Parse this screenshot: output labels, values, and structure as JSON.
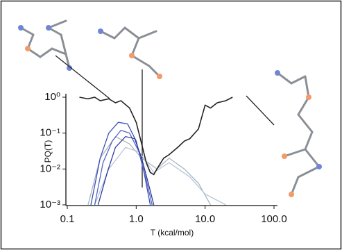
{
  "chart_data": {
    "type": "line",
    "x_label": "T (kcal/mol)",
    "y_label": "PQ(T)",
    "log_x": true,
    "log_y": true,
    "xlim": [
      0.1,
      100
    ],
    "ylim": [
      0.001,
      1
    ],
    "xticks": [
      {
        "value": 0.1,
        "label": "0.1"
      },
      {
        "value": 1,
        "label": "1.0"
      },
      {
        "value": 10,
        "label": "10.0"
      },
      {
        "value": 100,
        "label": "100.0"
      }
    ],
    "yticks": [
      {
        "value": 0.001,
        "label": "10⁻³"
      },
      {
        "value": 0.01,
        "label": "10⁻²"
      },
      {
        "value": 0.1,
        "label": "10⁻¹"
      },
      {
        "value": 1,
        "label": "10⁰"
      }
    ],
    "series": [
      {
        "color": "#a9b4bf",
        "x": [
          0.2,
          0.3,
          0.5,
          0.8,
          1.2,
          2,
          3,
          5,
          8,
          12
        ],
        "values": [
          0.001,
          0.02,
          0.08,
          0.05,
          0.02,
          0.01,
          0.02,
          0.01,
          0.004,
          0.001
        ]
      },
      {
        "color": "#b7c6d8",
        "x": [
          0.25,
          0.4,
          0.7,
          1.1,
          1.8,
          3,
          6,
          10,
          20
        ],
        "values": [
          0.001,
          0.01,
          0.04,
          0.03,
          0.008,
          0.015,
          0.006,
          0.002,
          0.001
        ]
      },
      {
        "color": "#3b4fb2",
        "x": [
          0.22,
          0.3,
          0.4,
          0.55,
          0.75,
          1.0,
          1.3,
          1.6
        ],
        "values": [
          0.001,
          0.02,
          0.1,
          0.2,
          0.18,
          0.06,
          0.008,
          0.001
        ]
      },
      {
        "color": "#5566c4",
        "x": [
          0.25,
          0.33,
          0.45,
          0.6,
          0.8,
          1.1,
          1.4,
          1.7
        ],
        "values": [
          0.001,
          0.015,
          0.06,
          0.12,
          0.1,
          0.03,
          0.005,
          0.001
        ]
      },
      {
        "color": "#2a3a9a",
        "x": [
          0.28,
          0.38,
          0.5,
          0.7,
          0.95,
          1.2,
          1.5,
          1.8
        ],
        "values": [
          0.001,
          0.008,
          0.04,
          0.08,
          0.07,
          0.02,
          0.004,
          0.001
        ]
      },
      {
        "color": "#222222",
        "x": [
          0.15,
          0.2,
          0.25,
          0.3,
          0.4,
          0.5,
          0.6,
          0.8,
          1.0,
          1.2,
          1.4,
          1.6,
          1.8,
          2.0,
          2.5,
          3,
          4,
          5,
          6,
          8,
          10,
          12,
          15,
          20,
          25
        ],
        "values": [
          1,
          0.9,
          1,
          0.8,
          0.9,
          0.7,
          0.8,
          0.5,
          0.2,
          0.05,
          0.015,
          0.008,
          0.007,
          0.01,
          0.02,
          0.025,
          0.04,
          0.06,
          0.07,
          0.13,
          0.6,
          0.5,
          0.7,
          0.8,
          1
        ]
      }
    ]
  }
}
